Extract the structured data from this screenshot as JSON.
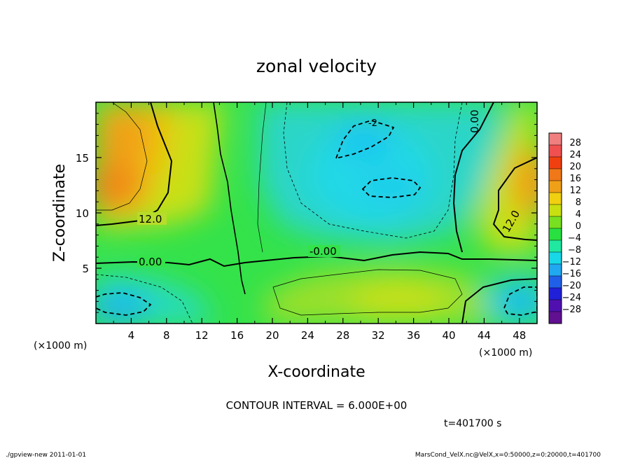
{
  "chart_data": {
    "type": "heatmap",
    "title": "zonal velocity",
    "xlabel": "X-coordinate",
    "ylabel": "Z-coordinate",
    "x_unit": "(×1000 m)",
    "y_unit": "(×1000 m)",
    "xlim": [
      0,
      50
    ],
    "ylim": [
      0,
      20
    ],
    "x_ticks": [
      4,
      8,
      12,
      16,
      20,
      24,
      28,
      32,
      36,
      40,
      44,
      48
    ],
    "y_ticks": [
      5,
      10,
      15
    ],
    "colorbar": {
      "levels": [
        28,
        24,
        20,
        16,
        12,
        8,
        4,
        0,
        -4,
        -8,
        -12,
        -16,
        -20,
        -24,
        -28
      ],
      "colors": [
        "#f08080",
        "#f05050",
        "#f04010",
        "#f07818",
        "#f0a018",
        "#f0d010",
        "#c8e010",
        "#78e020",
        "#28e040",
        "#20e8a0",
        "#18d8e8",
        "#20a8f0",
        "#2060e8",
        "#2020d8",
        "#5010b0",
        "#601090"
      ]
    },
    "contour_labels": [
      {
        "text": "12.0"
      },
      {
        "text": "0.00"
      },
      {
        "text": "-0.00"
      },
      {
        "text": "0.00"
      },
      {
        "text": "12.0"
      },
      {
        "text": "-2"
      }
    ],
    "contour_interval": "CONTOUR INTERVAL = 6.000E+00",
    "time_label": "t=401700 s"
  },
  "footer": {
    "left": "./gpview-new  2011-01-01",
    "right": "MarsCond_VelX.nc@VelX,x=0:50000,z=0:20000,t=401700"
  }
}
